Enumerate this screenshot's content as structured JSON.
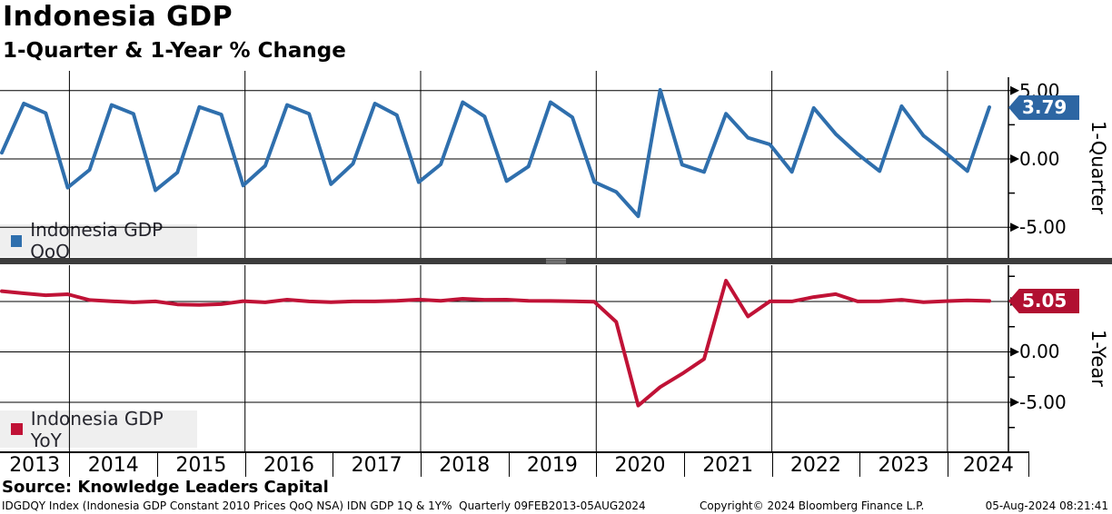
{
  "header": {
    "title": "Indonesia GDP",
    "subtitle": "1-Quarter & 1-Year % Change"
  },
  "panels": {
    "qoq": {
      "legend_label": "Indonesia GDP QoQ",
      "value_badge": "3.79",
      "axis_label": "1-Quarter",
      "ticks": [
        "5.00",
        "0.00",
        "-5.00"
      ],
      "color": "#2f6fad"
    },
    "yoy": {
      "legend_label": "Indonesia GDP YoY",
      "value_badge": "5.05",
      "axis_label": "1-Year",
      "ticks": [
        "5.00",
        "0.00",
        "-5.00"
      ],
      "color": "#c01236"
    }
  },
  "x_axis": {
    "years": [
      "2013",
      "2014",
      "2015",
      "2016",
      "2017",
      "2018",
      "2019",
      "2020",
      "2021",
      "2022",
      "2023",
      "2024"
    ]
  },
  "source": {
    "text": "Source: Knowledge Leaders Capital"
  },
  "footer": {
    "left": "IDGDQY Index (Indonesia GDP Constant 2010 Prices QoQ NSA) IDN GDP 1Q & 1Y%  Quarterly 09FEB2013-05AUG2024",
    "copyright": "Copyright© 2024 Bloomberg Finance L.P.",
    "timestamp": "05-Aug-2024 08:21:41"
  },
  "chart_data": [
    {
      "type": "line",
      "name": "Indonesia GDP QoQ",
      "title": "1-Quarter % Change",
      "ylabel": "1-Quarter",
      "ylim": [
        -7.3,
        6.0
      ],
      "grid": "on",
      "legend_position": "bottom-left",
      "axis_ticks": [
        5.0,
        0.0,
        -5.0
      ],
      "last_value": 3.79,
      "categories": [
        "2013Q1",
        "2013Q2",
        "2013Q3",
        "2013Q4",
        "2014Q1",
        "2014Q2",
        "2014Q3",
        "2014Q4",
        "2015Q1",
        "2015Q2",
        "2015Q3",
        "2015Q4",
        "2016Q1",
        "2016Q2",
        "2016Q3",
        "2016Q4",
        "2017Q1",
        "2017Q2",
        "2017Q3",
        "2017Q4",
        "2018Q1",
        "2018Q2",
        "2018Q3",
        "2018Q4",
        "2019Q1",
        "2019Q2",
        "2019Q3",
        "2019Q4",
        "2020Q1",
        "2020Q2",
        "2020Q3",
        "2020Q4",
        "2021Q1",
        "2021Q2",
        "2021Q3",
        "2021Q4",
        "2022Q1",
        "2022Q2",
        "2022Q3",
        "2022Q4",
        "2023Q1",
        "2023Q2",
        "2023Q3",
        "2023Q4",
        "2024Q1",
        "2024Q2"
      ],
      "values": [
        0.45,
        4.05,
        3.35,
        -2.1,
        -0.8,
        3.95,
        3.3,
        -2.3,
        -1.0,
        3.8,
        3.25,
        -1.95,
        -0.5,
        3.95,
        3.3,
        -1.85,
        -0.35,
        4.05,
        3.2,
        -1.7,
        -0.4,
        4.15,
        3.1,
        -1.62,
        -0.55,
        4.15,
        3.05,
        -1.69,
        -2.41,
        -4.19,
        5.05,
        -0.42,
        -0.96,
        3.31,
        1.55,
        1.06,
        -0.95,
        3.73,
        1.82,
        0.36,
        -0.89,
        3.86,
        1.7,
        0.45,
        -0.89,
        3.79
      ]
    },
    {
      "type": "line",
      "name": "Indonesia GDP YoY",
      "title": "1-Year % Change",
      "ylabel": "1-Year",
      "ylim": [
        -9.5,
        8.6
      ],
      "grid": "on",
      "legend_position": "bottom-left",
      "axis_ticks": [
        5.0,
        0.0,
        -5.0
      ],
      "last_value": 5.05,
      "categories": [
        "2013Q1",
        "2013Q2",
        "2013Q3",
        "2013Q4",
        "2014Q1",
        "2014Q2",
        "2014Q3",
        "2014Q4",
        "2015Q1",
        "2015Q2",
        "2015Q3",
        "2015Q4",
        "2016Q1",
        "2016Q2",
        "2016Q3",
        "2016Q4",
        "2017Q1",
        "2017Q2",
        "2017Q3",
        "2017Q4",
        "2018Q1",
        "2018Q2",
        "2018Q3",
        "2018Q4",
        "2019Q1",
        "2019Q2",
        "2019Q3",
        "2019Q4",
        "2020Q1",
        "2020Q2",
        "2020Q3",
        "2020Q4",
        "2021Q1",
        "2021Q2",
        "2021Q3",
        "2021Q4",
        "2022Q1",
        "2022Q2",
        "2022Q3",
        "2022Q4",
        "2023Q1",
        "2023Q2",
        "2023Q3",
        "2023Q4",
        "2024Q1",
        "2024Q2"
      ],
      "values": [
        6.03,
        5.81,
        5.62,
        5.72,
        5.14,
        5.03,
        4.92,
        5.01,
        4.71,
        4.66,
        4.74,
        5.04,
        4.92,
        5.18,
        5.01,
        4.94,
        5.01,
        5.01,
        5.06,
        5.19,
        5.06,
        5.27,
        5.17,
        5.18,
        5.07,
        5.05,
        5.02,
        4.97,
        2.97,
        -5.32,
        -3.49,
        -2.17,
        -0.7,
        7.07,
        3.51,
        5.02,
        5.01,
        5.44,
        5.73,
        5.01,
        5.03,
        5.17,
        4.94,
        5.04,
        5.11,
        5.05
      ]
    }
  ]
}
